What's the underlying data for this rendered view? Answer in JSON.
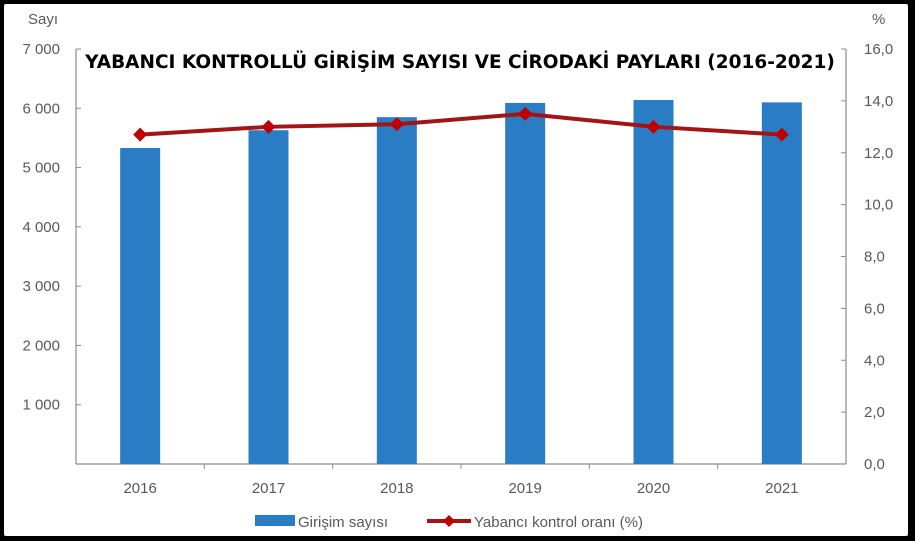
{
  "chart_data": {
    "type": "bar+line",
    "title": "YABANCI KONTROLLÜ GİRİŞİM SAYISI VE CİRODAKİ PAYLARI (2016-2021)",
    "categories": [
      "2016",
      "2017",
      "2018",
      "2019",
      "2020",
      "2021"
    ],
    "series": [
      {
        "name": "Girişim sayısı",
        "type": "bar",
        "axis": "left",
        "color": "#2a7dc4",
        "values": [
          5330,
          5630,
          5850,
          6090,
          6140,
          6100
        ]
      },
      {
        "name": "Yabancı kontrol oranı (%)",
        "type": "line",
        "axis": "right",
        "color": "#a31515",
        "marker": "diamond",
        "marker_color": "#c00000",
        "values": [
          12.7,
          13.0,
          13.1,
          13.5,
          13.0,
          12.7
        ]
      }
    ],
    "left_axis": {
      "label": "Sayı",
      "ylim": [
        0,
        7000
      ],
      "ticks": [
        1000,
        2000,
        3000,
        4000,
        5000,
        6000,
        7000
      ],
      "tick_labels": [
        "1 000",
        "2 000",
        "3 000",
        "4 000",
        "5 000",
        "6 000",
        "7 000"
      ]
    },
    "right_axis": {
      "label": "%",
      "ylim": [
        0,
        16
      ],
      "ticks": [
        0,
        2,
        4,
        6,
        8,
        10,
        12,
        14,
        16
      ],
      "tick_labels": [
        "0,0",
        "2,0",
        "4,0",
        "6,0",
        "8,0",
        "10,0",
        "12,0",
        "14,0",
        "16,0"
      ]
    },
    "xlabel": "",
    "grid": false,
    "legend_position": "bottom"
  },
  "legend": {
    "bar_label": "Girişim sayısı",
    "line_label": "Yabancı kontrol oranı (%)"
  }
}
